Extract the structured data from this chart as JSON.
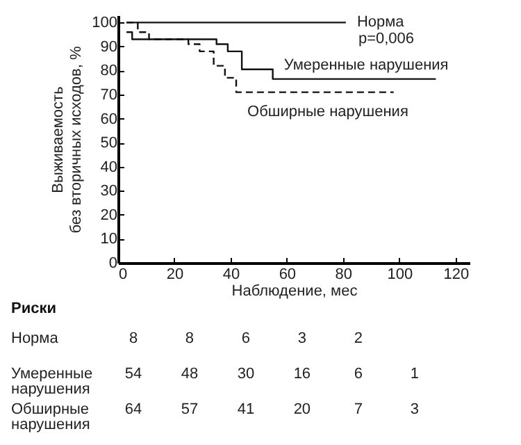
{
  "chart_data": [
    {
      "type": "step",
      "xlabel": "Наблюдение, мес",
      "ylabel": "Выживаемость без вторичных исходов, %",
      "xlim": [
        0,
        125
      ],
      "ylim": [
        0,
        103
      ],
      "xticks": [
        0,
        20,
        40,
        60,
        80,
        100,
        120
      ],
      "yticks": [
        0,
        10,
        20,
        30,
        40,
        50,
        60,
        70,
        80,
        90,
        100
      ],
      "annotations": [
        "p=0,006"
      ],
      "series": [
        {
          "name": "Норма",
          "color": "#111111",
          "line_style": "solid",
          "x": [
            3,
            81
          ],
          "values": [
            100,
            100
          ]
        },
        {
          "name": "Умеренные нарушения",
          "color": "#111111",
          "line_style": "solid",
          "x": [
            3,
            5,
            35,
            39,
            44,
            55,
            113
          ],
          "values": [
            96,
            93,
            91,
            88,
            80.5,
            76.5,
            76.5
          ]
        },
        {
          "name": "Обширные нарушения",
          "color": "#111111",
          "line_style": "dashed",
          "x": [
            3,
            7,
            11,
            25,
            29,
            34,
            38,
            42,
            98
          ],
          "values": [
            100,
            96,
            93,
            91,
            88,
            82,
            77,
            71,
            71
          ]
        }
      ]
    },
    {
      "type": "other",
      "title": "Риски",
      "y_categories": [
        "Норма",
        "Умеренные нарушения",
        "Обширные нарушения"
      ],
      "cell_labels": [
        [
          "8",
          "8",
          "6",
          "3",
          "2",
          null
        ],
        [
          "54",
          "48",
          "30",
          "16",
          "6",
          "1"
        ],
        [
          "64",
          "57",
          "41",
          "20",
          "7",
          "3"
        ]
      ]
    }
  ]
}
